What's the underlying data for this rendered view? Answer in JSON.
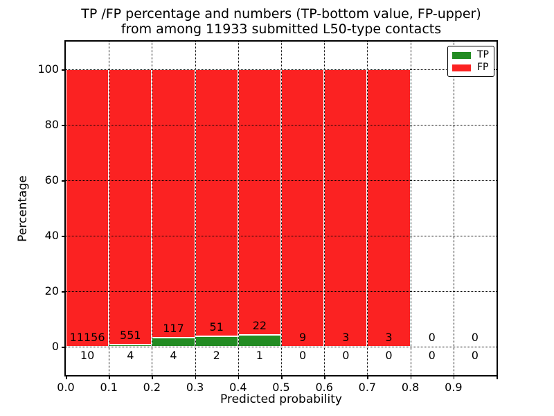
{
  "chart_data": {
    "type": "bar",
    "stacked": true,
    "title_lines": [
      "TP /FP percentage and numbers (TP-bottom value, FP-upper)",
      "from among 11933 submitted L50-type contacts"
    ],
    "xlabel": "Predicted probability",
    "ylabel": "Percentage",
    "xlim": [
      0.0,
      1.0
    ],
    "ylim": [
      -10,
      110
    ],
    "bin_width": 0.1,
    "x_tick_labels": [
      "0.0",
      "0.1",
      "0.2",
      "0.3",
      "0.4",
      "0.5",
      "0.6",
      "0.7",
      "0.8",
      "0.9"
    ],
    "y_ticks": [
      0,
      20,
      40,
      60,
      80,
      100
    ],
    "grid_style": "dotted",
    "bins": [
      {
        "x_start": 0.0,
        "x_end": 0.1,
        "tp": 10,
        "fp": 11156
      },
      {
        "x_start": 0.1,
        "x_end": 0.2,
        "tp": 4,
        "fp": 551
      },
      {
        "x_start": 0.2,
        "x_end": 0.3,
        "tp": 4,
        "fp": 117
      },
      {
        "x_start": 0.3,
        "x_end": 0.4,
        "tp": 2,
        "fp": 51
      },
      {
        "x_start": 0.4,
        "x_end": 0.5,
        "tp": 1,
        "fp": 22
      },
      {
        "x_start": 0.5,
        "x_end": 0.6,
        "tp": 0,
        "fp": 9
      },
      {
        "x_start": 0.6,
        "x_end": 0.7,
        "tp": 0,
        "fp": 3
      },
      {
        "x_start": 0.7,
        "x_end": 0.8,
        "tp": 0,
        "fp": 3
      },
      {
        "x_start": 0.8,
        "x_end": 0.9,
        "tp": 0,
        "fp": 0
      },
      {
        "x_start": 0.9,
        "x_end": 1.0,
        "tp": 0,
        "fp": 0
      }
    ],
    "series": [
      {
        "name": "TP",
        "color": "#228b22"
      },
      {
        "name": "FP",
        "color": "#fb2222"
      }
    ],
    "legend": {
      "position": "upper right",
      "entries": [
        {
          "label": "TP",
          "color": "#228b22"
        },
        {
          "label": "FP",
          "color": "#fb2222"
        }
      ]
    },
    "colors": {
      "tp": "#228b22",
      "fp": "#fb2222",
      "bar_edge": "#ffffff",
      "grid": "#000000",
      "background": "#ffffff"
    }
  }
}
